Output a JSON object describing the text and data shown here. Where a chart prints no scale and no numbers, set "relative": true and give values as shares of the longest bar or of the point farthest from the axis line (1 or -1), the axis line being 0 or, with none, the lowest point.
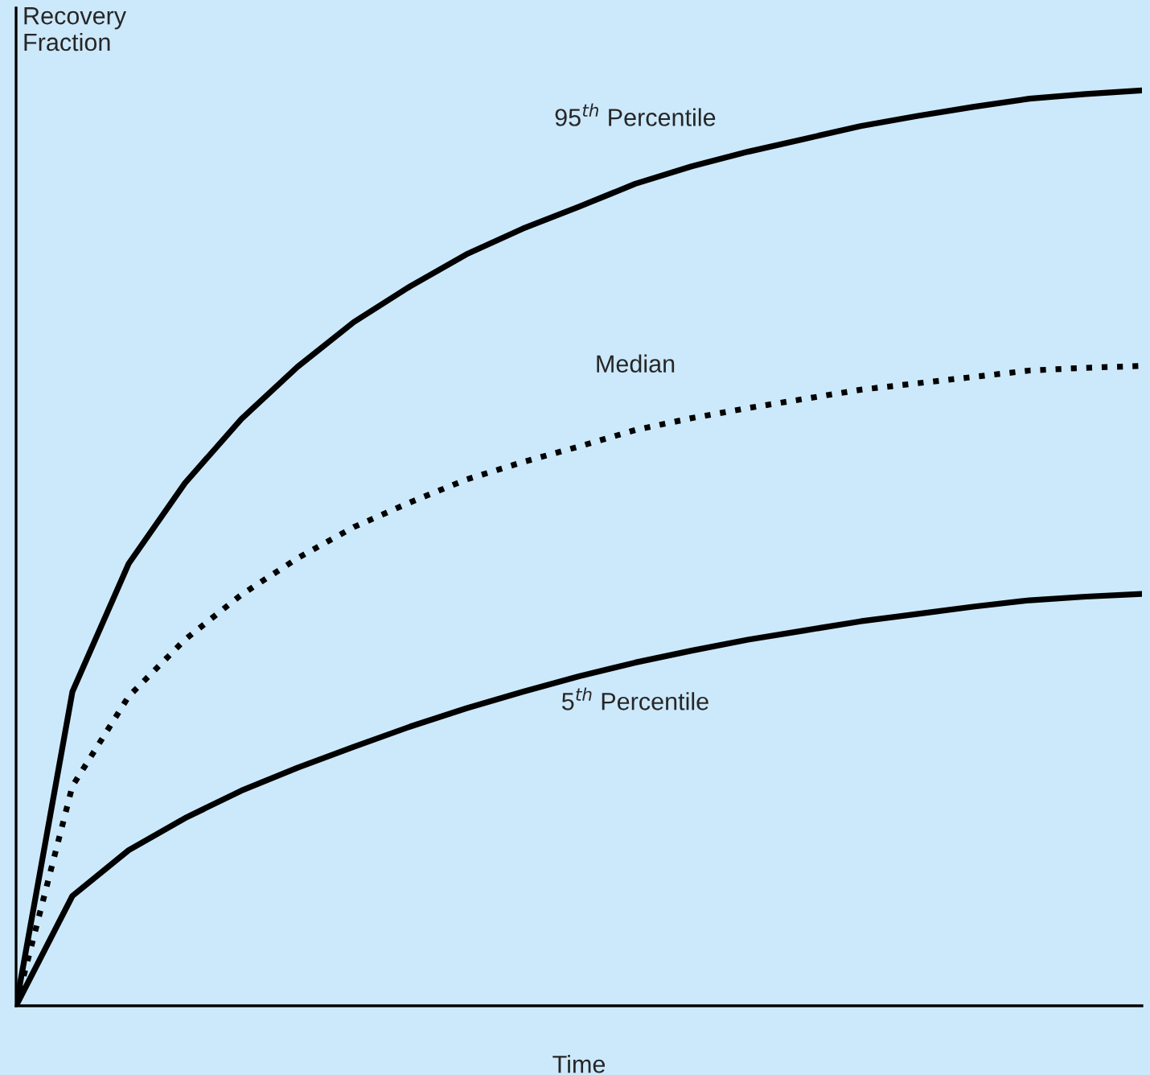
{
  "chart_data": {
    "type": "line",
    "relative": true,
    "xlabel": "Time",
    "ylabel": "Recovery\nFraction",
    "categories": [
      null,
      null,
      null,
      null,
      null,
      null,
      null,
      null,
      null,
      null,
      null,
      null,
      null,
      null,
      null,
      null,
      null,
      null,
      null,
      null,
      null
    ],
    "legend": false,
    "marker": "none",
    "series": [
      {
        "name": "95$^{th}$ Percentile",
        "color": "#000000",
        "line_style": "solid",
        "values": [
          0,
          0.343,
          0.483,
          0.571,
          0.641,
          0.698,
          0.747,
          0.786,
          0.821,
          0.849,
          0.873,
          0.898,
          0.917,
          0.933,
          0.947,
          0.961,
          0.972,
          0.982,
          0.991,
          0.996,
          1
        ]
      },
      {
        "name": "Median",
        "color": "#000000",
        "line_style": "dotted",
        "values": [
          0,
          0.24,
          0.338,
          0.4,
          0.449,
          0.489,
          0.523,
          0.55,
          0.575,
          0.594,
          0.611,
          0.629,
          0.642,
          0.653,
          0.663,
          0.673,
          0.68,
          0.687,
          0.694,
          0.697,
          0.699
        ]
      },
      {
        "name": "5$^{th}$ Percentile",
        "color": "#000000",
        "line_style": "solid",
        "values": [
          0,
          0.12,
          0.17,
          0.205,
          0.235,
          0.26,
          0.283,
          0.305,
          0.325,
          0.343,
          0.36,
          0.375,
          0.388,
          0.4,
          0.41,
          0.42,
          0.428,
          0.436,
          0.443,
          0.447,
          0.45
        ]
      }
    ]
  }
}
